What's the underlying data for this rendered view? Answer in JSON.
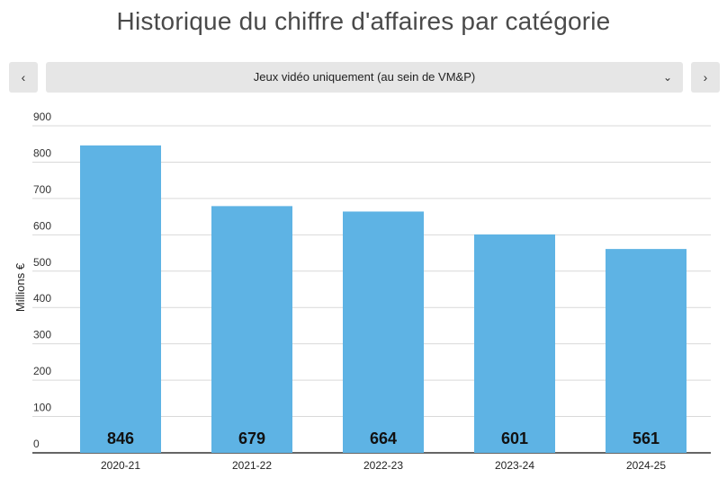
{
  "header": {
    "title": "Historique du chiffre d'affaires par catégorie"
  },
  "navigation": {
    "prev_label": "‹",
    "next_label": "›",
    "prev_icon": "chevron-left-icon",
    "next_icon": "chevron-right-icon"
  },
  "dropdown": {
    "selected": "Jeux vidéo uniquement (au sein de VM&P)",
    "icon": "chevron-down-icon"
  },
  "chart_data": {
    "type": "bar",
    "title": "Historique du chiffre d'affaires par catégorie",
    "xlabel": "",
    "ylabel": "Millions €",
    "categories": [
      "2020-21",
      "2021-22",
      "2022-23",
      "2023-24",
      "2024-25"
    ],
    "values": [
      846,
      679,
      664,
      601,
      561
    ],
    "data_labels": [
      "846",
      "679",
      "664",
      "601",
      "561"
    ],
    "ylim": [
      0,
      900
    ],
    "yticks": [
      "0",
      "100",
      "200",
      "300",
      "400",
      "500",
      "600",
      "700",
      "800",
      "900"
    ],
    "grid": true,
    "legend": "none",
    "bar_color": "#5eb3e4"
  }
}
